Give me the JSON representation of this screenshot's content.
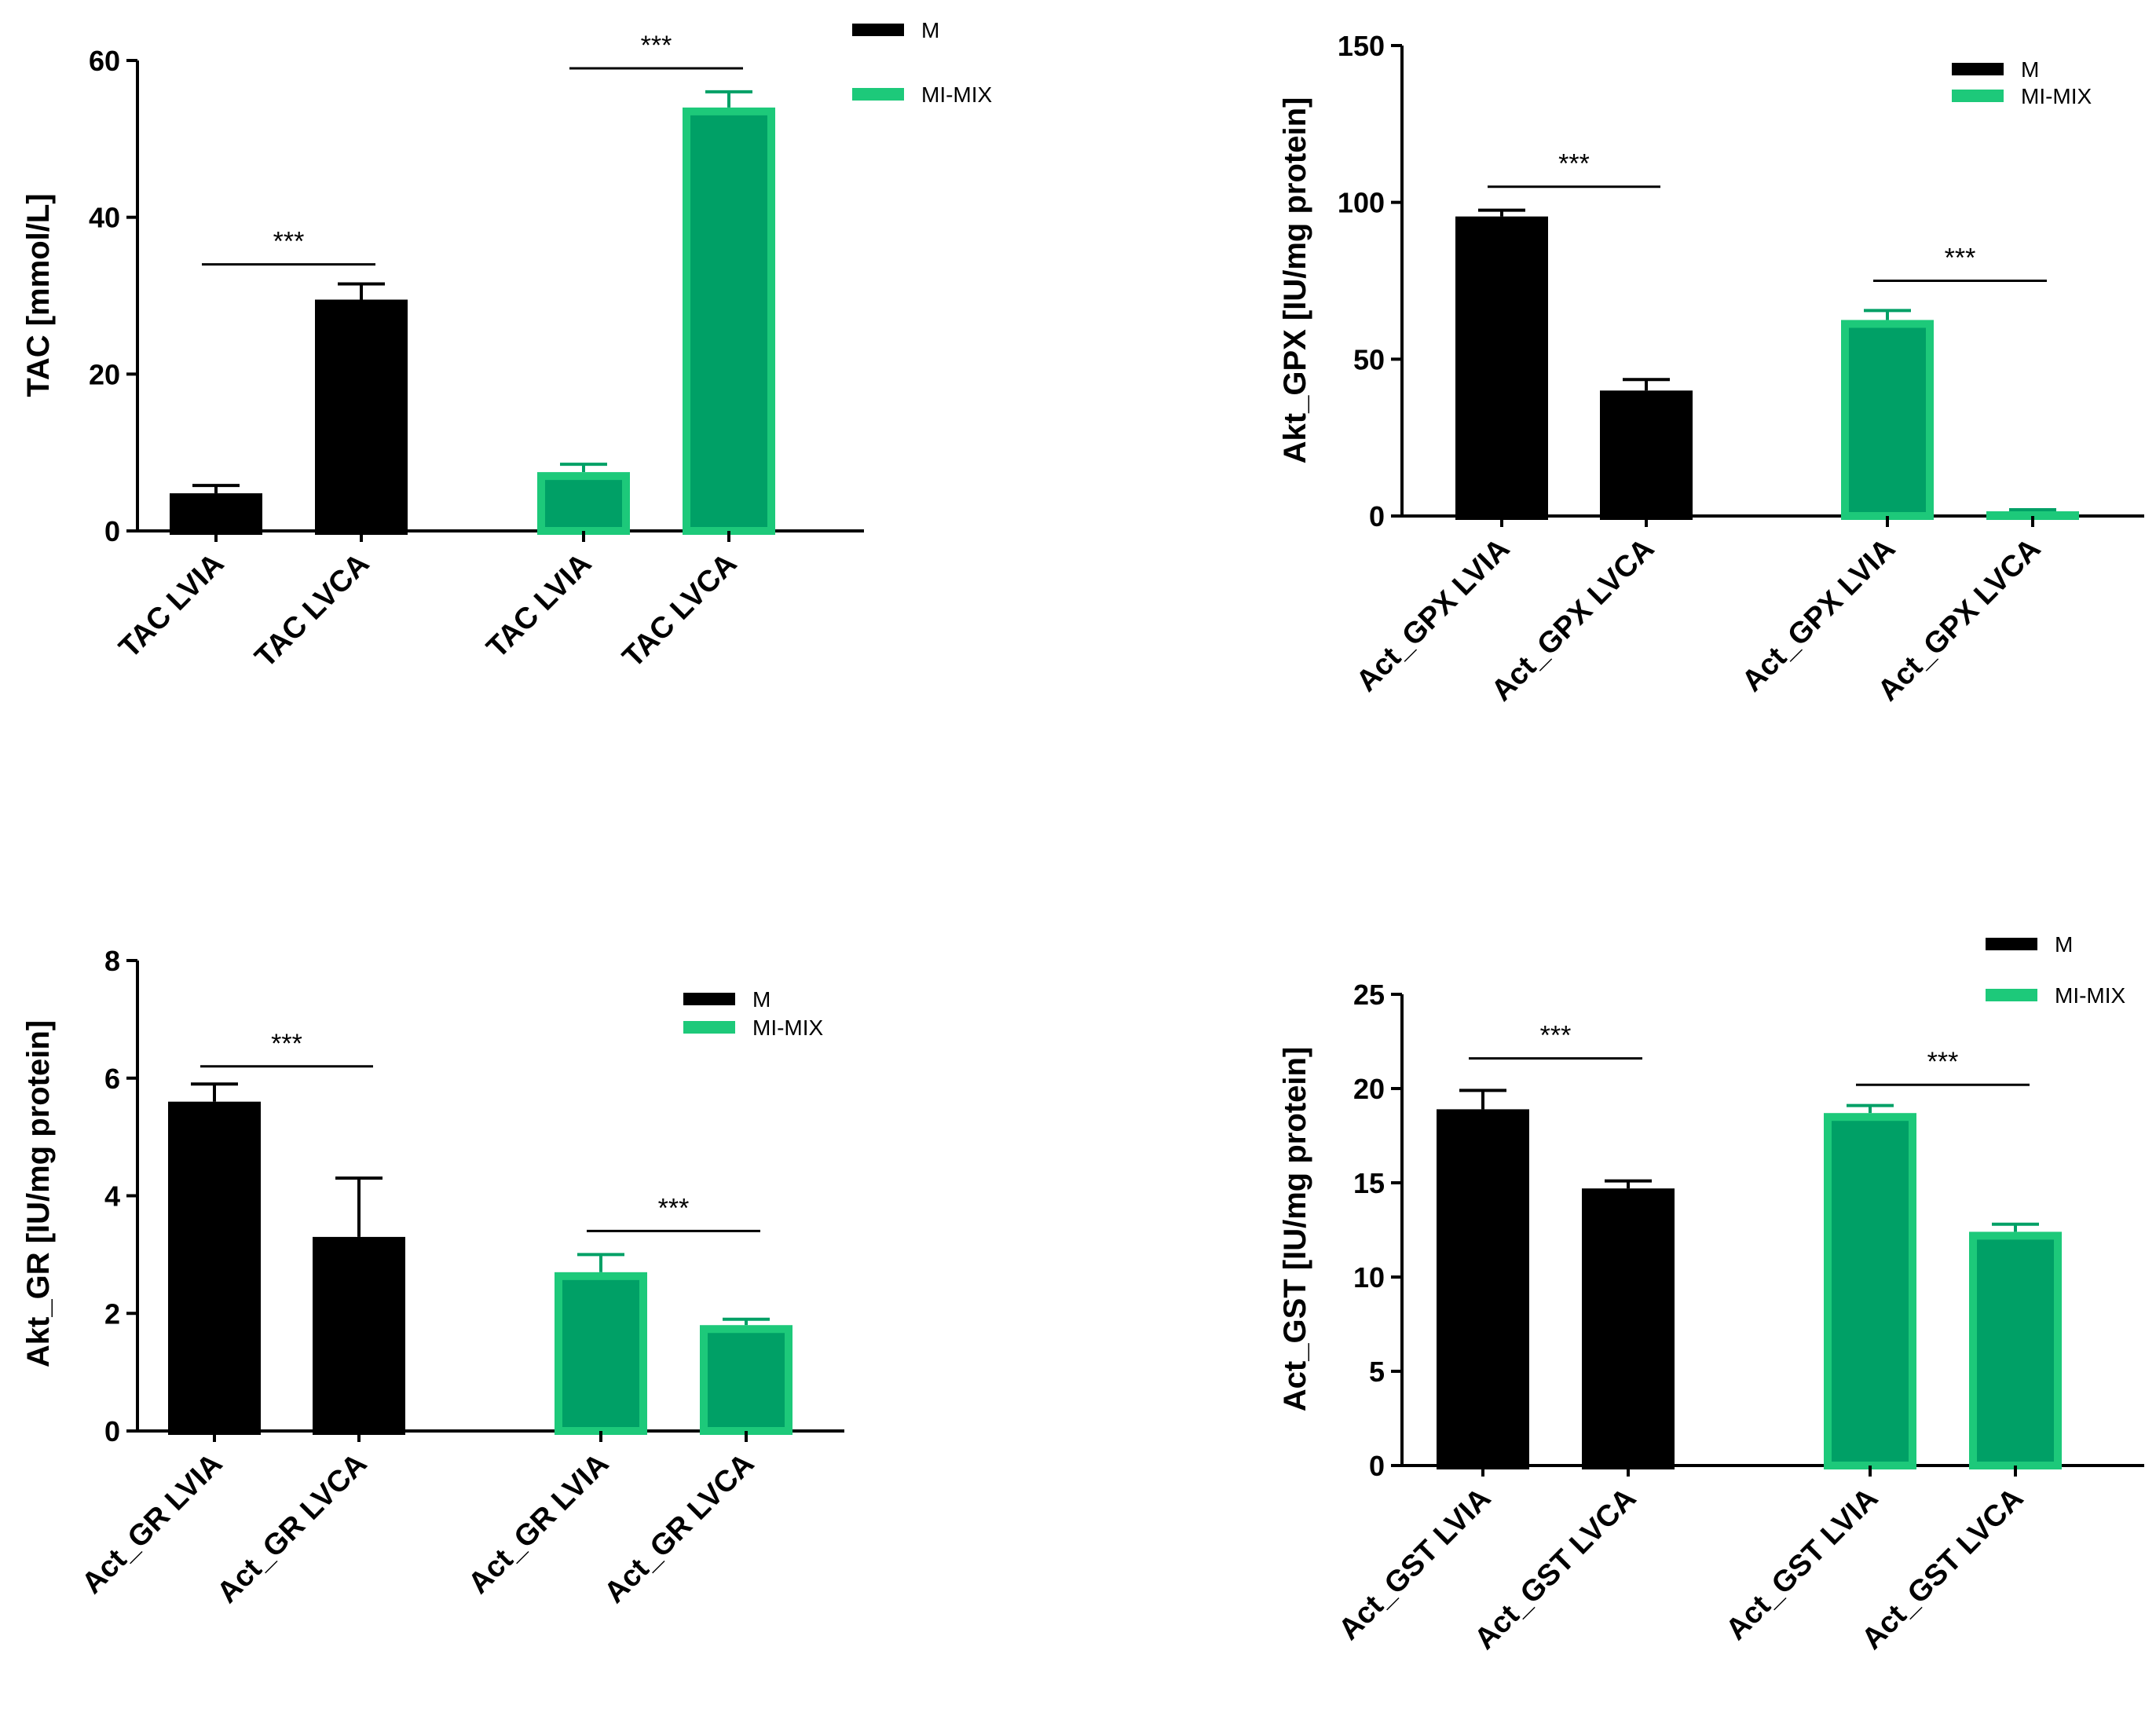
{
  "colors": {
    "M": "#000000",
    "MI_MIX_fill": "#00a066",
    "MI_MIX_edge": "#1dc97a",
    "axis": "#000000"
  },
  "legend_labels": [
    "M",
    "MI-MIX"
  ],
  "chart_data": [
    {
      "type": "bar",
      "ylabel": "TAC [mmol/L]",
      "ylim": [
        0,
        60
      ],
      "yticks": [
        0,
        20,
        40,
        60
      ],
      "legend_position": "top-right",
      "bars": [
        {
          "category": "TAC LVIA",
          "group": "M",
          "value": 4.8,
          "error": 1.0
        },
        {
          "category": "TAC LVCA",
          "group": "M",
          "value": 29.5,
          "error": 2.0
        },
        {
          "category": "TAC LVIA",
          "group": "MI-MIX",
          "value": 7.5,
          "error": 1.0
        },
        {
          "category": "TAC LVCA",
          "group": "MI-MIX",
          "value": 54,
          "error": 2.0
        }
      ],
      "significance": [
        {
          "label": "***",
          "from": 0,
          "to": 1,
          "y": 34
        },
        {
          "label": "***",
          "from": 2,
          "to": 3,
          "y": 59
        }
      ]
    },
    {
      "type": "bar",
      "ylabel": "Akt_GPX [IU/mg protein]",
      "ylim": [
        0,
        150
      ],
      "yticks": [
        0,
        50,
        100,
        150
      ],
      "legend_position": "top-right",
      "bars": [
        {
          "category": "Act_GPX LVIA",
          "group": "M",
          "value": 95.5,
          "error": 2.0
        },
        {
          "category": "Act_GPX LVCA",
          "group": "M",
          "value": 40,
          "error": 3.5
        },
        {
          "category": "Act_GPX LVIA",
          "group": "MI-MIX",
          "value": 62.5,
          "error": 3.0
        },
        {
          "category": "Act_GPX LVCA",
          "group": "MI-MIX",
          "value": 1.5,
          "error": 0.5
        }
      ],
      "significance": [
        {
          "label": "***",
          "from": 0,
          "to": 1,
          "y": 105
        },
        {
          "label": "***",
          "from": 2,
          "to": 3,
          "y": 75
        }
      ]
    },
    {
      "type": "bar",
      "ylabel": "Akt_GR [IU/mg protein]",
      "ylim": [
        0,
        8
      ],
      "yticks": [
        0,
        2,
        4,
        6,
        8
      ],
      "legend_position": "top-right",
      "bars": [
        {
          "category": "Act_GR LVIA",
          "group": "M",
          "value": 5.6,
          "error": 0.3
        },
        {
          "category": "Act_GR LVCA",
          "group": "M",
          "value": 3.3,
          "error": 1.0
        },
        {
          "category": "Act_GR LVIA",
          "group": "MI-MIX",
          "value": 2.7,
          "error": 0.3
        },
        {
          "category": "Act_GR LVCA",
          "group": "MI-MIX",
          "value": 1.8,
          "error": 0.1
        }
      ],
      "significance": [
        {
          "label": "***",
          "from": 0,
          "to": 1,
          "y": 6.2
        },
        {
          "label": "***",
          "from": 2,
          "to": 3,
          "y": 3.4
        }
      ]
    },
    {
      "type": "bar",
      "ylabel": "Act_GST [IU/mg protein]",
      "ylim": [
        0,
        25
      ],
      "yticks": [
        0,
        5,
        10,
        15,
        20,
        25
      ],
      "legend_position": "top-right",
      "bars": [
        {
          "category": "Act_GST LVIA",
          "group": "M",
          "value": 18.9,
          "error": 1.0
        },
        {
          "category": "Act_GST LVCA",
          "group": "M",
          "value": 14.7,
          "error": 0.4
        },
        {
          "category": "Act_GST LVIA",
          "group": "MI-MIX",
          "value": 18.7,
          "error": 0.4
        },
        {
          "category": "Act_GST LVCA",
          "group": "MI-MIX",
          "value": 12.4,
          "error": 0.4
        }
      ],
      "significance": [
        {
          "label": "***",
          "from": 0,
          "to": 1,
          "y": 21.6
        },
        {
          "label": "***",
          "from": 2,
          "to": 3,
          "y": 20.2
        }
      ]
    }
  ]
}
